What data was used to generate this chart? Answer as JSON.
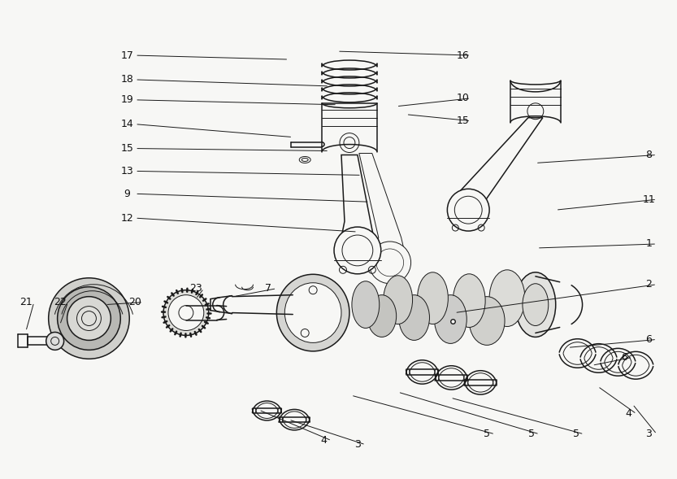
{
  "bg_color": "#f7f7f5",
  "line_color": "#1a1a1a",
  "text_color": "#111111",
  "fig_width": 8.33,
  "fig_height": 5.89,
  "dpi": 100,
  "leaders": [
    [
      "17",
      155,
      67,
      355,
      72
    ],
    [
      "18",
      155,
      97,
      405,
      105
    ],
    [
      "19",
      155,
      122,
      415,
      128
    ],
    [
      "14",
      155,
      152,
      360,
      168
    ],
    [
      "15",
      155,
      182,
      405,
      185
    ],
    [
      "13",
      155,
      210,
      445,
      215
    ],
    [
      "9",
      155,
      238,
      455,
      248
    ],
    [
      "12",
      155,
      268,
      440,
      285
    ],
    [
      "16",
      570,
      67,
      415,
      62
    ],
    [
      "15",
      570,
      148,
      500,
      140
    ],
    [
      "10",
      570,
      120,
      488,
      130
    ],
    [
      "8",
      800,
      190,
      660,
      200
    ],
    [
      "11",
      800,
      245,
      685,
      258
    ],
    [
      "1",
      800,
      300,
      662,
      305
    ],
    [
      "2",
      800,
      350,
      560,
      385
    ],
    [
      "7",
      330,
      355,
      287,
      365
    ],
    [
      "6",
      800,
      418,
      700,
      428
    ],
    [
      "6",
      770,
      440,
      730,
      450
    ],
    [
      "5",
      710,
      535,
      555,
      490
    ],
    [
      "5",
      655,
      535,
      490,
      483
    ],
    [
      "5",
      600,
      535,
      432,
      487
    ],
    [
      "4",
      775,
      510,
      737,
      476
    ],
    [
      "3",
      800,
      535,
      780,
      498
    ],
    [
      "4",
      398,
      543,
      318,
      505
    ],
    [
      "3",
      440,
      548,
      355,
      517
    ],
    [
      "20",
      165,
      372,
      128,
      375
    ],
    [
      "21",
      30,
      372,
      30,
      408
    ],
    [
      "22",
      72,
      372,
      72,
      400
    ],
    [
      "23",
      240,
      355,
      240,
      368
    ]
  ]
}
